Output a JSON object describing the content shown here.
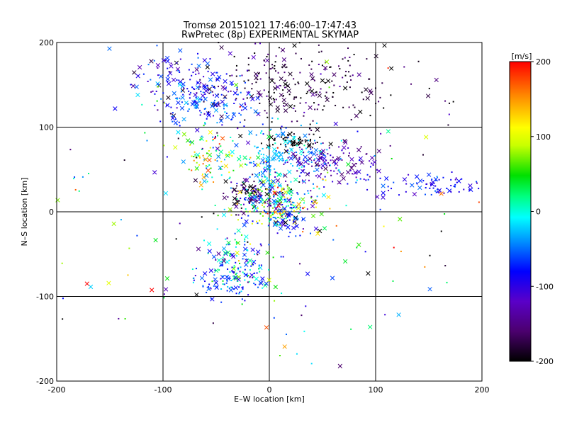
{
  "chart_data": {
    "type": "scatter",
    "title": "Tromsø 20151021 17:46:00–17:47:43",
    "subtitle": "RwPretec (8p) EXPERIMENTAL SKYMAP",
    "xlabel": "E–W location [km]",
    "ylabel": "N–S location [km]",
    "xlim": [
      -200,
      200
    ],
    "ylim": [
      -200,
      200
    ],
    "x_ticks": [
      -200,
      -100,
      0,
      100,
      200
    ],
    "y_ticks": [
      -200,
      -100,
      0,
      100,
      200
    ],
    "grid": true,
    "marker_styles": [
      "dot",
      "cross"
    ],
    "colorbar": {
      "label": "[m/s]",
      "range": [
        -200,
        200
      ],
      "ticks": [
        200,
        100,
        0,
        -100,
        -200
      ],
      "colormap": "rainbow (black-purple-blue-cyan-green-yellow-orange-red)"
    },
    "clusters": [
      {
        "cx": 20,
        "cy": 150,
        "sx": 55,
        "sy": 30,
        "n": 320,
        "vmean": -175,
        "vspread": 25
      },
      {
        "cx": -70,
        "cy": 145,
        "sx": 25,
        "sy": 20,
        "n": 110,
        "vmean": -85,
        "vspread": 25
      },
      {
        "cx": -100,
        "cy": 170,
        "sx": 15,
        "sy": 15,
        "n": 35,
        "vmean": -100,
        "vspread": 30
      },
      {
        "cx": -55,
        "cy": 125,
        "sx": 25,
        "sy": 12,
        "n": 80,
        "vmean": -60,
        "vspread": 25
      },
      {
        "cx": 25,
        "cy": 85,
        "sx": 15,
        "sy": 5,
        "n": 60,
        "vmean": -200,
        "vspread": 5
      },
      {
        "cx": 10,
        "cy": 60,
        "sx": 25,
        "sy": 18,
        "n": 180,
        "vmean": -30,
        "vspread": 25
      },
      {
        "cx": 55,
        "cy": 55,
        "sx": 25,
        "sy": 12,
        "n": 120,
        "vmean": -130,
        "vspread": 20
      },
      {
        "cx": -55,
        "cy": 65,
        "sx": 15,
        "sy": 15,
        "n": 90,
        "vmean": 70,
        "vspread": 60
      },
      {
        "cx": -15,
        "cy": 20,
        "sx": 12,
        "sy": 10,
        "n": 110,
        "vmean": -160,
        "vspread": 40
      },
      {
        "cx": 5,
        "cy": 10,
        "sx": 20,
        "sy": 15,
        "n": 200,
        "vmean": 40,
        "vspread": 80
      },
      {
        "cx": 15,
        "cy": -5,
        "sx": 12,
        "sy": 15,
        "n": 80,
        "vmean": -90,
        "vspread": 40
      },
      {
        "cx": -30,
        "cy": -60,
        "sx": 15,
        "sy": 20,
        "n": 150,
        "vmean": -20,
        "vspread": 60
      },
      {
        "cx": -40,
        "cy": -85,
        "sx": 15,
        "sy": 10,
        "n": 60,
        "vmean": -70,
        "vspread": 20
      },
      {
        "cx": 160,
        "cy": 30,
        "sx": 25,
        "sy": 6,
        "n": 70,
        "vmean": -85,
        "vspread": 20
      },
      {
        "cx": 100,
        "cy": 35,
        "sx": 25,
        "sy": 15,
        "n": 25,
        "vmean": -75,
        "vspread": 30
      },
      {
        "cx": 0,
        "cy": 0,
        "sx": 110,
        "sy": 110,
        "n": 170,
        "vmean": 0,
        "vspread": 120
      }
    ]
  }
}
